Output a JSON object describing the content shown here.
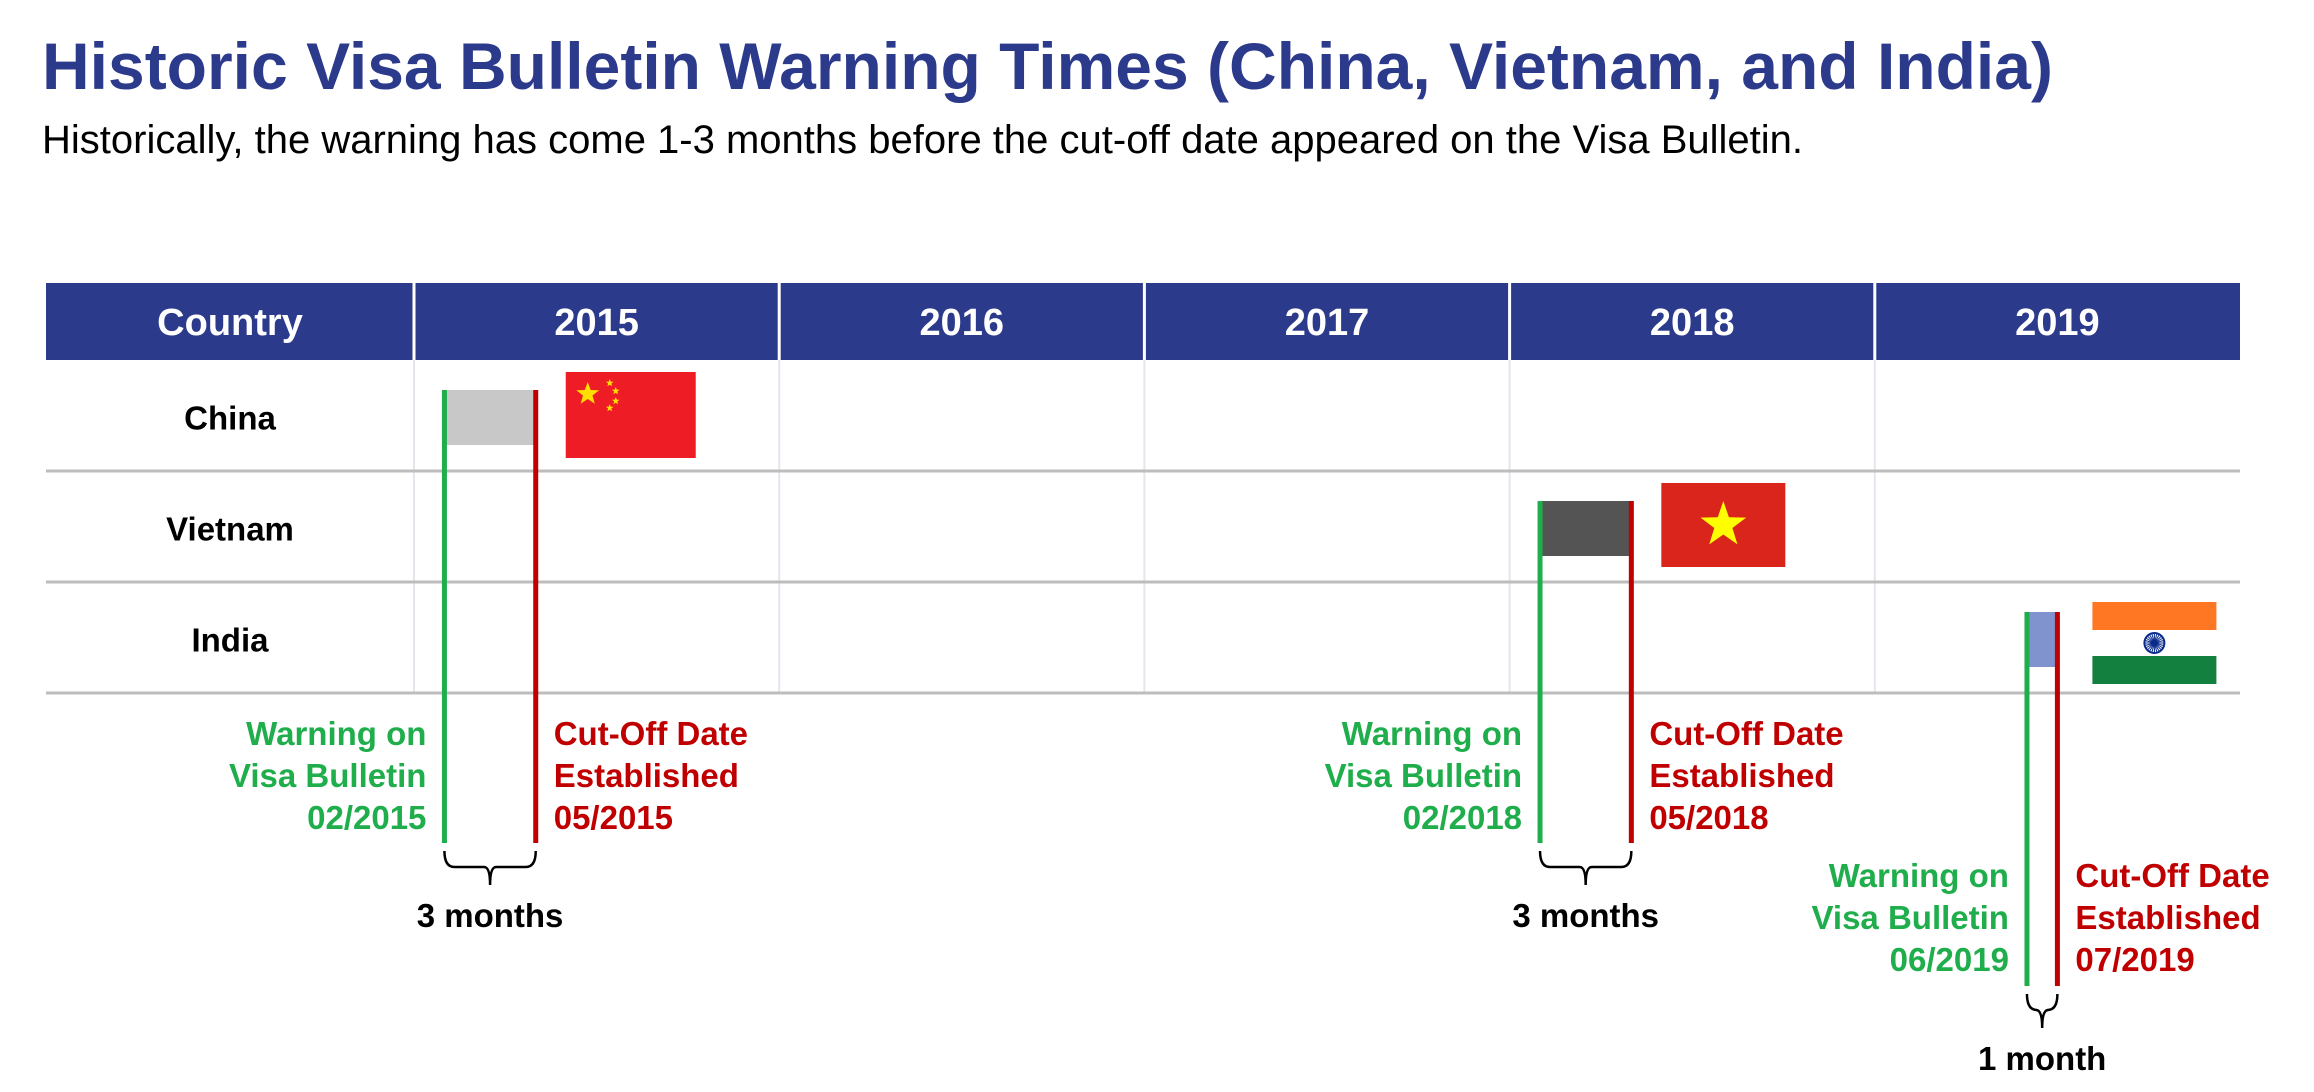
{
  "title": "Historic Visa Bulletin Warning Times (China, Vietnam, and India)",
  "subtitle": "Historically, the warning has come 1-3 months before the cut-off date appeared on the Visa Bulletin.",
  "colors": {
    "header_bg": "#2c3a8c",
    "header_text": "#ffffff",
    "warning": "#1fae4b",
    "cutoff": "#c00000",
    "span_china": "#c8c8c8",
    "span_vietnam": "#545454",
    "span_india": "#8093cf"
  },
  "chart_data": {
    "type": "table",
    "header": {
      "country_label": "Country",
      "years": [
        "2015",
        "2016",
        "2017",
        "2018",
        "2019"
      ]
    },
    "x_axis": {
      "start": "2015-01",
      "end": "2019-12",
      "unit": "month"
    },
    "rows": [
      {
        "country": "China",
        "flag": "china-flag",
        "span_color": "#c8c8c8",
        "warning": {
          "date": "2015-02",
          "label_lines": [
            "Warning on",
            "Visa Bulletin",
            "02/2015"
          ]
        },
        "cutoff": {
          "date": "2015-05",
          "label_lines": [
            "Cut-Off Date",
            "Established",
            "05/2015"
          ]
        },
        "duration_label": "3 months"
      },
      {
        "country": "Vietnam",
        "flag": "vietnam-flag",
        "span_color": "#545454",
        "warning": {
          "date": "2018-02",
          "label_lines": [
            "Warning on",
            "Visa Bulletin",
            "02/2018"
          ]
        },
        "cutoff": {
          "date": "2018-05",
          "label_lines": [
            "Cut-Off Date",
            "Established",
            "05/2018"
          ]
        },
        "duration_label": "3 months"
      },
      {
        "country": "India",
        "flag": "india-flag",
        "span_color": "#8093cf",
        "warning": {
          "date": "2019-06",
          "label_lines": [
            "Warning on",
            "Visa Bulletin",
            "06/2019"
          ]
        },
        "cutoff": {
          "date": "2019-07",
          "label_lines": [
            "Cut-Off Date",
            "Established",
            "07/2019"
          ]
        },
        "duration_label": "1 month"
      }
    ]
  }
}
